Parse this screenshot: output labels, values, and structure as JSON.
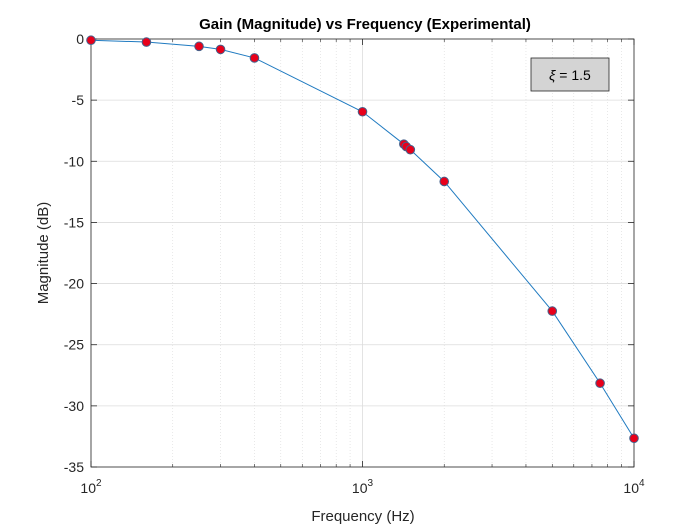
{
  "chart_data": {
    "type": "line",
    "title": "Gain (Magnitude) vs Frequency (Experimental)",
    "xlabel": "Frequency (Hz)",
    "ylabel": "Magnitude (dB)",
    "xscale": "log",
    "xlim": [
      100,
      10000
    ],
    "ylim": [
      -35,
      0
    ],
    "x_ticks": [
      {
        "value": 100,
        "base": "10",
        "exp": "2"
      },
      {
        "value": 1000,
        "base": "10",
        "exp": "3"
      },
      {
        "value": 10000,
        "base": "10",
        "exp": "4"
      }
    ],
    "y_ticks": [
      {
        "value": 0,
        "label": "0"
      },
      {
        "value": -5,
        "label": "-5"
      },
      {
        "value": -10,
        "label": "-10"
      },
      {
        "value": -15,
        "label": "-15"
      },
      {
        "value": -20,
        "label": "-20"
      },
      {
        "value": -25,
        "label": "-25"
      },
      {
        "value": -30,
        "label": "-30"
      },
      {
        "value": -35,
        "label": "-35"
      }
    ],
    "grid": true,
    "minor_grid": true,
    "annotation": {
      "symbol": "ξ",
      "text": " = 1.5",
      "placement": "top-right"
    },
    "series": [
      {
        "x": [
          100,
          160,
          250,
          300,
          400,
          1000,
          1420,
          1450,
          1500,
          2000,
          5000,
          7500,
          10000
        ],
        "y": [
          -0.1,
          -0.25,
          -0.6,
          -0.85,
          -1.55,
          -5.95,
          -8.6,
          -8.8,
          -9.05,
          -11.65,
          -22.25,
          -28.15,
          -32.65
        ],
        "line_color": "#1f7ac0",
        "marker_fill": "#e8001a",
        "marker_edge": "#46608a"
      }
    ]
  }
}
